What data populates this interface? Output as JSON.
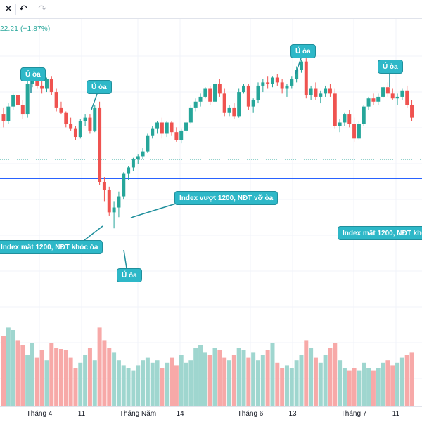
{
  "toolbar": {
    "undo_icon": "undo-icon",
    "redo_icon": "redo-icon"
  },
  "legend": {
    "price_change": "22.21 (+1.87%)"
  },
  "colors": {
    "up": "#26a69a",
    "down": "#ef5350",
    "volume_up": "#9fd6cf",
    "volume_down": "#f7a9a8",
    "support_line": "#2962ff",
    "dotted_line": "#26a69a",
    "callout_bg": "#2eb8c8"
  },
  "annotations": [
    {
      "id": "u-oa-1",
      "text": "Ú òa"
    },
    {
      "id": "u-oa-2",
      "text": "Ú òa"
    },
    {
      "id": "u-oa-3",
      "text": "Ú òa"
    },
    {
      "id": "u-oa-4",
      "text": "Ú òa"
    },
    {
      "id": "u-oa-5",
      "text": "Ú òa"
    },
    {
      "id": "index-vuot",
      "text": "Index vượt 1200, NĐT vỡ òa"
    },
    {
      "id": "index-mat-left",
      "text": "Index mất 1200, NĐT khóc òa"
    },
    {
      "id": "index-mat-right",
      "text": "Index mất 1200, NĐT khó"
    }
  ],
  "time_axis": [
    "Tháng 4",
    "11",
    "Tháng Năm",
    "14",
    "Tháng 6",
    "13",
    "Tháng 7",
    "11"
  ],
  "chart_data": {
    "type": "candlestick",
    "title": "",
    "support_level": 1200,
    "y_range": [
      1110,
      1300
    ],
    "x_labels": [
      "Tháng 4",
      "11",
      "Tháng Năm",
      "14",
      "Tháng 6",
      "13",
      "Tháng 7",
      "11"
    ],
    "candles": [
      [
        1240,
        1244,
        1232,
        1236
      ],
      [
        1236,
        1247,
        1234,
        1245
      ],
      [
        1245,
        1253,
        1243,
        1252
      ],
      [
        1252,
        1256,
        1244,
        1246
      ],
      [
        1246,
        1249,
        1237,
        1240
      ],
      [
        1240,
        1262,
        1238,
        1259
      ],
      [
        1259,
        1264,
        1257,
        1262
      ],
      [
        1262,
        1266,
        1256,
        1258
      ],
      [
        1258,
        1261,
        1253,
        1256
      ],
      [
        1256,
        1263,
        1254,
        1262
      ],
      [
        1262,
        1264,
        1252,
        1254
      ],
      [
        1254,
        1256,
        1242,
        1244
      ],
      [
        1244,
        1248,
        1240,
        1241
      ],
      [
        1241,
        1242,
        1232,
        1234
      ],
      [
        1234,
        1238,
        1230,
        1231
      ],
      [
        1231,
        1233,
        1224,
        1226
      ],
      [
        1226,
        1237,
        1225,
        1236
      ],
      [
        1236,
        1240,
        1233,
        1238
      ],
      [
        1238,
        1240,
        1228,
        1230
      ],
      [
        1230,
        1246,
        1229,
        1244
      ],
      [
        1244,
        1248,
        1196,
        1198
      ],
      [
        1198,
        1201,
        1186,
        1193
      ],
      [
        1193,
        1195,
        1177,
        1179
      ],
      [
        1179,
        1186,
        1169,
        1182
      ],
      [
        1182,
        1192,
        1176,
        1189
      ],
      [
        1189,
        1204,
        1187,
        1203
      ],
      [
        1203,
        1208,
        1199,
        1207
      ],
      [
        1207,
        1213,
        1205,
        1212
      ],
      [
        1212,
        1215,
        1209,
        1214
      ],
      [
        1214,
        1219,
        1212,
        1217
      ],
      [
        1217,
        1228,
        1216,
        1227
      ],
      [
        1227,
        1233,
        1225,
        1231
      ],
      [
        1231,
        1236,
        1228,
        1235
      ],
      [
        1235,
        1238,
        1225,
        1228
      ],
      [
        1228,
        1236,
        1226,
        1235
      ],
      [
        1235,
        1236,
        1227,
        1229
      ],
      [
        1229,
        1232,
        1223,
        1224
      ],
      [
        1224,
        1231,
        1222,
        1230
      ],
      [
        1230,
        1236,
        1228,
        1235
      ],
      [
        1235,
        1246,
        1234,
        1244
      ],
      [
        1244,
        1250,
        1242,
        1248
      ],
      [
        1248,
        1253,
        1245,
        1251
      ],
      [
        1251,
        1257,
        1250,
        1256
      ],
      [
        1256,
        1258,
        1246,
        1248
      ],
      [
        1248,
        1261,
        1247,
        1259
      ],
      [
        1259,
        1262,
        1251,
        1253
      ],
      [
        1253,
        1256,
        1239,
        1241
      ],
      [
        1241,
        1246,
        1239,
        1244
      ],
      [
        1244,
        1247,
        1237,
        1239
      ],
      [
        1239,
        1256,
        1238,
        1254
      ],
      [
        1254,
        1259,
        1253,
        1258
      ],
      [
        1258,
        1259,
        1243,
        1245
      ],
      [
        1245,
        1250,
        1241,
        1249
      ],
      [
        1249,
        1260,
        1247,
        1258
      ],
      [
        1258,
        1262,
        1254,
        1260
      ],
      [
        1260,
        1264,
        1256,
        1259
      ],
      [
        1259,
        1264,
        1257,
        1263
      ],
      [
        1263,
        1265,
        1258,
        1260
      ],
      [
        1260,
        1262,
        1253,
        1256
      ],
      [
        1256,
        1259,
        1251,
        1258
      ],
      [
        1258,
        1264,
        1256,
        1262
      ],
      [
        1262,
        1270,
        1260,
        1268
      ],
      [
        1268,
        1274,
        1266,
        1273
      ],
      [
        1273,
        1275,
        1250,
        1252
      ],
      [
        1252,
        1258,
        1249,
        1256
      ],
      [
        1256,
        1260,
        1249,
        1251
      ],
      [
        1251,
        1255,
        1247,
        1253
      ],
      [
        1253,
        1258,
        1251,
        1256
      ],
      [
        1256,
        1259,
        1251,
        1253
      ],
      [
        1253,
        1256,
        1231,
        1233
      ],
      [
        1233,
        1237,
        1229,
        1235
      ],
      [
        1235,
        1241,
        1233,
        1240
      ],
      [
        1240,
        1243,
        1232,
        1234
      ],
      [
        1234,
        1238,
        1223,
        1225
      ],
      [
        1225,
        1236,
        1224,
        1234
      ],
      [
        1234,
        1246,
        1233,
        1245
      ],
      [
        1245,
        1251,
        1243,
        1250
      ],
      [
        1250,
        1253,
        1246,
        1248
      ],
      [
        1248,
        1253,
        1246,
        1251
      ],
      [
        1251,
        1258,
        1250,
        1257
      ],
      [
        1257,
        1260,
        1251,
        1253
      ],
      [
        1253,
        1256,
        1249,
        1250
      ],
      [
        1250,
        1253,
        1246,
        1251
      ],
      [
        1251,
        1256,
        1249,
        1255
      ],
      [
        1255,
        1258,
        1244,
        1246
      ],
      [
        1246,
        1249,
        1236,
        1238
      ]
    ],
    "volumes": [
      0.55,
      0.62,
      0.6,
      0.52,
      0.48,
      0.4,
      0.5,
      0.38,
      0.44,
      0.36,
      0.5,
      0.46,
      0.45,
      0.44,
      0.38,
      0.3,
      0.34,
      0.4,
      0.46,
      0.36,
      0.62,
      0.52,
      0.46,
      0.42,
      0.36,
      0.32,
      0.3,
      0.28,
      0.32,
      0.36,
      0.38,
      0.34,
      0.36,
      0.3,
      0.34,
      0.38,
      0.32,
      0.4,
      0.34,
      0.36,
      0.46,
      0.48,
      0.42,
      0.4,
      0.46,
      0.44,
      0.38,
      0.36,
      0.4,
      0.46,
      0.44,
      0.38,
      0.42,
      0.36,
      0.4,
      0.44,
      0.5,
      0.34,
      0.3,
      0.32,
      0.3,
      0.36,
      0.4,
      0.52,
      0.46,
      0.38,
      0.34,
      0.4,
      0.46,
      0.5,
      0.36,
      0.3,
      0.28,
      0.3,
      0.28,
      0.34,
      0.3,
      0.28,
      0.3,
      0.34,
      0.36,
      0.32,
      0.34,
      0.38,
      0.4,
      0.42
    ]
  }
}
